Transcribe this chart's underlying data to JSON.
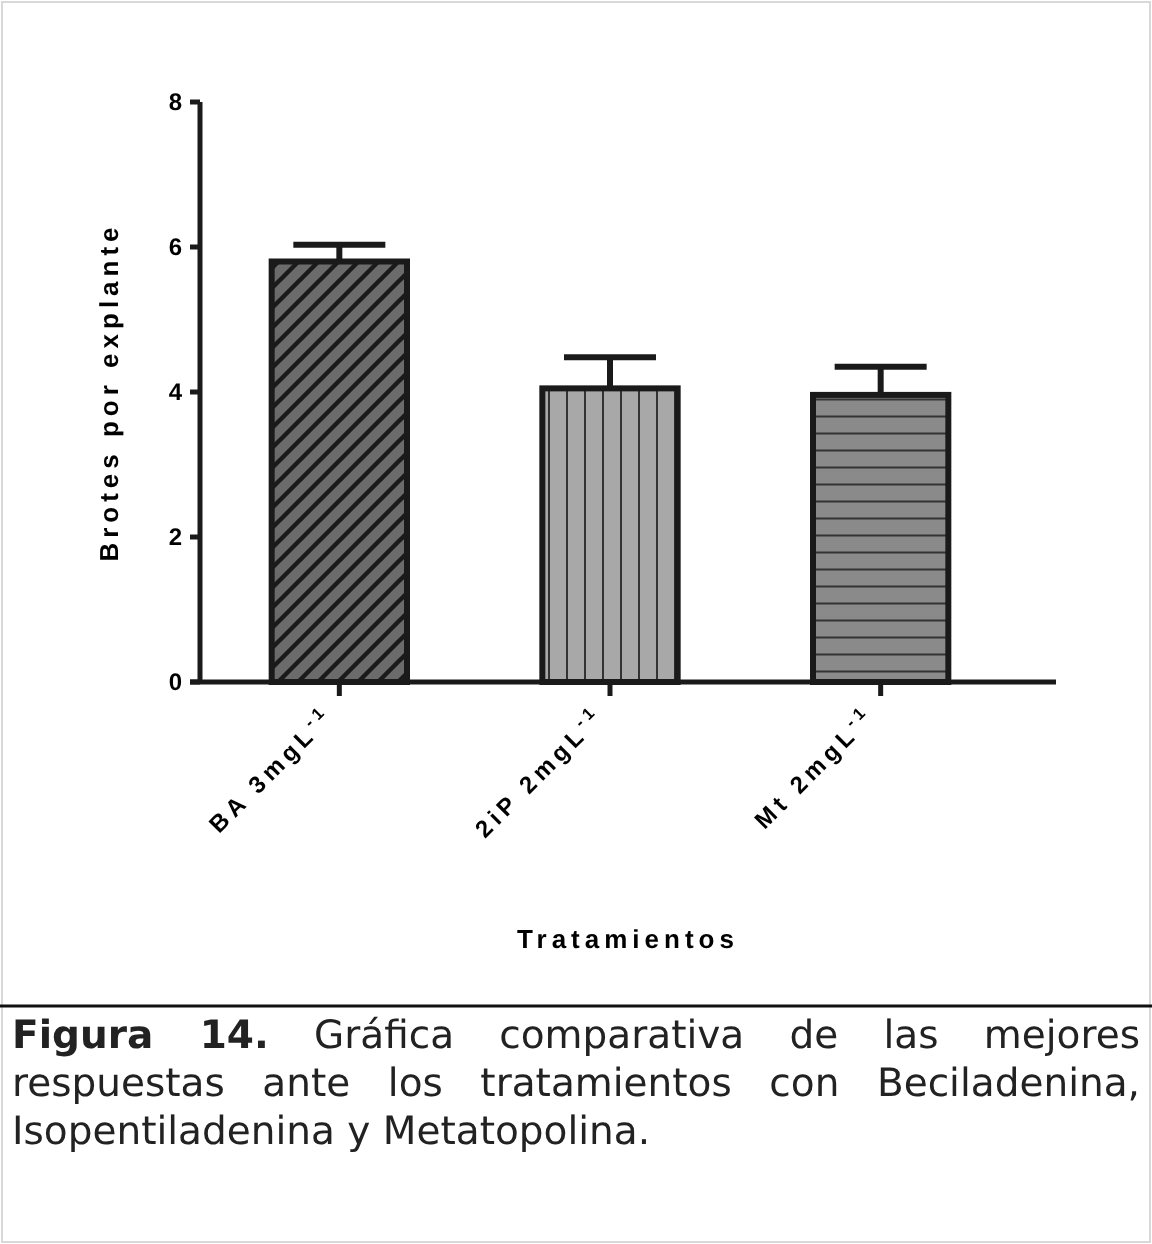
{
  "chart_data": {
    "type": "bar",
    "xlabel": "Tratamientos",
    "ylabel": "Brotes por explante",
    "categories": [
      "BA 3mgL$^{-1}$",
      "2iP 2mgL$^{-1}$",
      "Mt 2mgL$^{-1}$"
    ],
    "values": [
      5.8,
      4.05,
      3.96
    ],
    "errors": [
      [
        5.8,
        6.03
      ],
      [
        4.05,
        4.48
      ],
      [
        3.96,
        4.35
      ]
    ],
    "colors": [
      "#6b6b6b",
      "#a8a8a8",
      "#8a8a8a"
    ],
    "ylim": [
      0,
      8
    ],
    "yticks": [
      0,
      2,
      4,
      6,
      8
    ],
    "grid": false,
    "annotations": [
      "Figura 14. Gráfica comparativa de las mejores respuestas ante los tratamientos con Beciladenina, Isopentiladenina y Metatopolina."
    ]
  }
}
